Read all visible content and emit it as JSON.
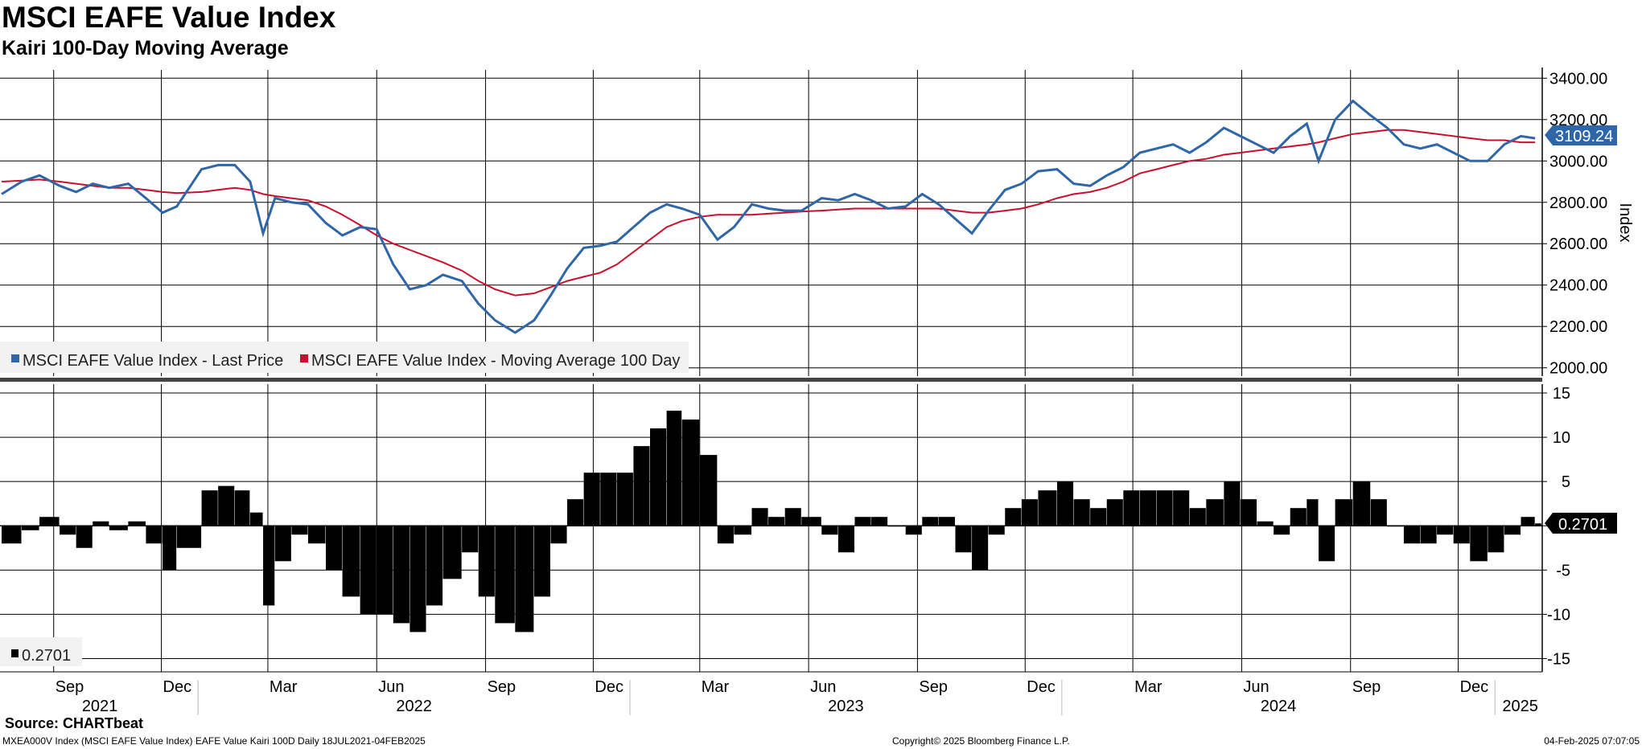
{
  "header": {
    "title": "MSCI EAFE Value Index",
    "subtitle": "Kairi 100-Day Moving Average"
  },
  "footer": {
    "source": "Source: CHARTbeat",
    "left": "MXEA000V Index (MSCI EAFE Value Index) EAFE Value Kairi 100D  Daily 18JUL2021-04FEB2025",
    "center": "Copyright© 2025 Bloomberg Finance L.P.",
    "right": "04-Feb-2025 07:07:05"
  },
  "colors": {
    "price": "#2e66a8",
    "ma": "#c8102e",
    "kairi": "#000000",
    "badge": "#2e66a8"
  },
  "chart_data": [
    {
      "type": "line",
      "ylabel": "Index",
      "ylim": [
        1960,
        3440
      ],
      "yticks": [
        "2000.00",
        "2200.00",
        "2400.00",
        "2600.00",
        "2800.00",
        "3000.00",
        "3200.00",
        "3400.00"
      ],
      "last_value_label": "3109.24",
      "grid": true,
      "legend": "bottom-left",
      "x_start": "2021-07-19",
      "x": [
        "2021-07-19",
        "2021-08-05",
        "2021-08-20",
        "2021-09-06",
        "2021-09-20",
        "2021-10-04",
        "2021-10-18",
        "2021-11-03",
        "2021-11-18",
        "2021-12-02",
        "2021-12-14",
        "2022-01-04",
        "2022-01-18",
        "2022-02-01",
        "2022-02-14",
        "2022-02-25",
        "2022-03-07",
        "2022-03-21",
        "2022-04-04",
        "2022-04-19",
        "2022-05-03",
        "2022-05-18",
        "2022-06-01",
        "2022-06-15",
        "2022-06-29",
        "2022-07-13",
        "2022-07-27",
        "2022-08-12",
        "2022-08-26",
        "2022-09-09",
        "2022-09-26",
        "2022-10-12",
        "2022-10-26",
        "2022-11-09",
        "2022-11-23",
        "2022-12-07",
        "2022-12-21",
        "2023-01-04",
        "2023-01-18",
        "2023-02-01",
        "2023-02-14",
        "2023-03-01",
        "2023-03-16",
        "2023-03-30",
        "2023-04-14",
        "2023-04-28",
        "2023-05-12",
        "2023-05-26",
        "2023-06-12",
        "2023-06-26",
        "2023-07-10",
        "2023-07-24",
        "2023-08-07",
        "2023-08-22",
        "2023-09-05",
        "2023-09-19",
        "2023-10-03",
        "2023-10-17",
        "2023-10-31",
        "2023-11-14",
        "2023-11-28",
        "2023-12-12",
        "2023-12-28",
        "2024-01-11",
        "2024-01-25",
        "2024-02-08",
        "2024-02-22",
        "2024-03-07",
        "2024-03-21",
        "2024-04-04",
        "2024-04-18",
        "2024-05-02",
        "2024-05-17",
        "2024-05-31",
        "2024-06-14",
        "2024-06-28",
        "2024-07-12",
        "2024-07-26",
        "2024-08-05",
        "2024-08-19",
        "2024-09-03",
        "2024-09-18",
        "2024-10-02",
        "2024-10-16",
        "2024-10-30",
        "2024-11-13",
        "2024-11-27",
        "2024-12-11",
        "2024-12-26",
        "2025-01-09",
        "2025-01-23",
        "2025-02-04"
      ],
      "series": [
        {
          "name": "MSCI EAFE Value Index - Last Price",
          "values": [
            2840,
            2900,
            2930,
            2880,
            2850,
            2890,
            2870,
            2890,
            2820,
            2750,
            2780,
            2960,
            2980,
            2980,
            2900,
            2650,
            2820,
            2800,
            2790,
            2700,
            2640,
            2680,
            2670,
            2500,
            2380,
            2400,
            2450,
            2420,
            2310,
            2230,
            2170,
            2230,
            2350,
            2480,
            2580,
            2590,
            2610,
            2680,
            2750,
            2790,
            2770,
            2740,
            2620,
            2680,
            2790,
            2770,
            2760,
            2760,
            2820,
            2810,
            2840,
            2810,
            2770,
            2780,
            2840,
            2790,
            2720,
            2650,
            2760,
            2860,
            2890,
            2950,
            2960,
            2890,
            2880,
            2930,
            2970,
            3040,
            3060,
            3080,
            3040,
            3090,
            3160,
            3120,
            3080,
            3040,
            3120,
            3180,
            3000,
            3200,
            3290,
            3220,
            3160,
            3080,
            3060,
            3080,
            3040,
            3000,
            3000,
            3080,
            3120,
            3109.24
          ]
        },
        {
          "name": "MSCI EAFE Value Index - Moving Average 100 Day",
          "values": [
            2900,
            2905,
            2910,
            2900,
            2890,
            2880,
            2870,
            2870,
            2860,
            2850,
            2845,
            2850,
            2860,
            2870,
            2860,
            2840,
            2830,
            2820,
            2810,
            2780,
            2740,
            2690,
            2640,
            2600,
            2570,
            2540,
            2510,
            2470,
            2420,
            2380,
            2350,
            2360,
            2390,
            2420,
            2440,
            2460,
            2500,
            2560,
            2620,
            2680,
            2710,
            2730,
            2740,
            2740,
            2740,
            2745,
            2750,
            2755,
            2760,
            2765,
            2770,
            2770,
            2770,
            2770,
            2770,
            2770,
            2760,
            2750,
            2750,
            2760,
            2770,
            2790,
            2820,
            2840,
            2850,
            2870,
            2900,
            2940,
            2960,
            2980,
            3000,
            3010,
            3030,
            3040,
            3050,
            3060,
            3070,
            3080,
            3090,
            3110,
            3130,
            3140,
            3150,
            3150,
            3140,
            3130,
            3120,
            3110,
            3100,
            3100,
            3090,
            3090
          ]
        }
      ]
    },
    {
      "type": "bar",
      "title": "",
      "ylim": [
        -16.5,
        16
      ],
      "yticks": [
        "-15",
        "-10",
        "-5",
        "0",
        "5",
        "10",
        "15"
      ],
      "last_value_label": "0.2701",
      "legend_value": "0.2701",
      "grid": true,
      "x_start": "2021-07-19",
      "x": [
        "2021-07-19",
        "2021-08-05",
        "2021-08-20",
        "2021-09-06",
        "2021-09-20",
        "2021-10-04",
        "2021-10-18",
        "2021-11-03",
        "2021-11-18",
        "2021-12-02",
        "2021-12-14",
        "2022-01-04",
        "2022-01-18",
        "2022-02-01",
        "2022-02-14",
        "2022-02-25",
        "2022-03-07",
        "2022-03-21",
        "2022-04-04",
        "2022-04-19",
        "2022-05-03",
        "2022-05-18",
        "2022-06-01",
        "2022-06-15",
        "2022-06-29",
        "2022-07-13",
        "2022-07-27",
        "2022-08-12",
        "2022-08-26",
        "2022-09-09",
        "2022-09-26",
        "2022-10-12",
        "2022-10-26",
        "2022-11-09",
        "2022-11-23",
        "2022-12-07",
        "2022-12-21",
        "2023-01-04",
        "2023-01-18",
        "2023-02-01",
        "2023-02-14",
        "2023-03-01",
        "2023-03-16",
        "2023-03-30",
        "2023-04-14",
        "2023-04-28",
        "2023-05-12",
        "2023-05-26",
        "2023-06-12",
        "2023-06-26",
        "2023-07-10",
        "2023-07-24",
        "2023-08-07",
        "2023-08-22",
        "2023-09-05",
        "2023-09-19",
        "2023-10-03",
        "2023-10-17",
        "2023-10-31",
        "2023-11-14",
        "2023-11-28",
        "2023-12-12",
        "2023-12-28",
        "2024-01-11",
        "2024-01-25",
        "2024-02-08",
        "2024-02-22",
        "2024-03-07",
        "2024-03-21",
        "2024-04-04",
        "2024-04-18",
        "2024-05-02",
        "2024-05-17",
        "2024-05-31",
        "2024-06-14",
        "2024-06-28",
        "2024-07-12",
        "2024-07-26",
        "2024-08-05",
        "2024-08-19",
        "2024-09-03",
        "2024-09-18",
        "2024-10-02",
        "2024-10-16",
        "2024-10-30",
        "2024-11-13",
        "2024-11-27",
        "2024-12-11",
        "2024-12-26",
        "2025-01-09",
        "2025-01-23",
        "2025-02-04"
      ],
      "values": [
        -2,
        -0.5,
        1,
        -1,
        -2.5,
        0.5,
        -0.5,
        0.5,
        -2,
        -5,
        -2.5,
        4,
        4.5,
        4,
        1.5,
        -9,
        -4,
        -1,
        -2,
        -5,
        -8,
        -10,
        -10,
        -11,
        -12,
        -9,
        -6,
        -3,
        -8,
        -11,
        -12,
        -8,
        -2,
        3,
        6,
        6,
        6,
        9,
        11,
        13,
        12,
        8,
        -2,
        -1,
        2,
        1,
        2,
        1,
        -1,
        -3,
        1,
        1,
        0,
        -1,
        1,
        1,
        -3,
        -5,
        -1,
        2,
        3,
        4,
        5,
        3,
        2,
        3,
        4,
        4,
        4,
        4,
        2,
        3,
        5,
        3,
        0.5,
        -1,
        2,
        3,
        -4,
        3,
        5,
        3,
        0,
        -2,
        -2,
        -1,
        -2,
        -4,
        -3,
        -1,
        1,
        0.2701
      ]
    }
  ],
  "x_axis": {
    "months": [
      "Sep",
      "Dec",
      "Mar",
      "Jun",
      "Sep",
      "Dec",
      "Mar",
      "Jun",
      "Sep",
      "Dec",
      "Mar",
      "Jun",
      "Sep",
      "Dec"
    ],
    "years": [
      "2021",
      "2022",
      "2023",
      "2024",
      "2025"
    ]
  }
}
